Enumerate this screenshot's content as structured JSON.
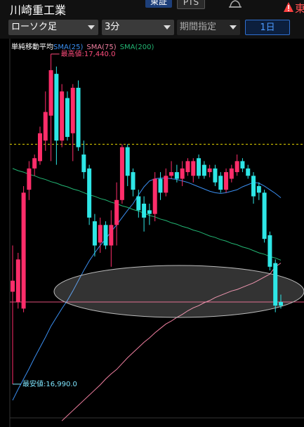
{
  "header": {
    "company": "川崎重工業",
    "market": "東証",
    "pts": "PTS",
    "alert_text": "東"
  },
  "toolbar": {
    "chart_kind": "ローソク足",
    "interval": "3分",
    "period": "期間指定",
    "range": "1日"
  },
  "chart_data": {
    "type": "candlestick",
    "legend_title": "単純移動平均",
    "up_color": "#ff2d6a",
    "down_color": "#2ee6e6",
    "open": [
      17116,
      17102,
      17093,
      17255,
      17284,
      17294,
      17322,
      17356,
      17413,
      17322,
      17380,
      17332,
      17394,
      17303,
      17284,
      17212,
      17183,
      17207,
      17179,
      17207,
      17241,
      17313,
      17279,
      17246,
      17236,
      17227,
      17222,
      17270,
      17251,
      17274,
      17279,
      17270,
      17279,
      17274,
      17298,
      17289,
      17279,
      17284,
      17274,
      17255,
      17270,
      17279,
      17294,
      17284,
      17274,
      17260,
      17251,
      17193,
      17155,
      17102
    ],
    "high": [
      17179,
      17169,
      17260,
      17294,
      17303,
      17341,
      17389,
      17440,
      17423,
      17399,
      17389,
      17399,
      17404,
      17322,
      17289,
      17222,
      17217,
      17212,
      17227,
      17265,
      17317,
      17317,
      17284,
      17255,
      17246,
      17236,
      17279,
      17279,
      17284,
      17294,
      17289,
      17294,
      17298,
      17298,
      17303,
      17294,
      17289,
      17289,
      17279,
      17284,
      17289,
      17303,
      17298,
      17289,
      17279,
      17265,
      17255,
      17198,
      17160,
      17112
    ],
    "low": [
      16990,
      17093,
      17088,
      17241,
      17274,
      17289,
      17308,
      17294,
      17289,
      17313,
      17322,
      17294,
      17308,
      17270,
      17207,
      17164,
      17169,
      17174,
      17150,
      17179,
      17236,
      17260,
      17246,
      17217,
      17198,
      17207,
      17212,
      17241,
      17246,
      17270,
      17265,
      17260,
      17274,
      17265,
      17270,
      17270,
      17272,
      17260,
      17251,
      17251,
      17265,
      17274,
      17279,
      17270,
      17236,
      17241,
      17183,
      17145,
      17088,
      17093
    ],
    "close": [
      17131,
      17160,
      17251,
      17284,
      17298,
      17332,
      17361,
      17418,
      17322,
      17389,
      17327,
      17394,
      17313,
      17279,
      17217,
      17179,
      17207,
      17179,
      17207,
      17241,
      17313,
      17274,
      17255,
      17227,
      17217,
      17222,
      17270,
      17251,
      17274,
      17279,
      17270,
      17284,
      17294,
      17294,
      17274,
      17274,
      17284,
      17265,
      17255,
      17279,
      17284,
      17294,
      17284,
      17274,
      17246,
      17251,
      17188,
      17150,
      17097,
      17097
    ],
    "series": [
      {
        "name": "SMA(25)",
        "color": "#3a8ef0",
        "values": [
          16968,
          16983,
          16997,
          17011,
          17026,
          17040,
          17054,
          17069,
          17081,
          17093,
          17104,
          17117,
          17131,
          17145,
          17158,
          17169,
          17179,
          17188,
          17198,
          17207,
          17217,
          17227,
          17236,
          17248,
          17259,
          17267,
          17270,
          17271,
          17271,
          17270,
          17269,
          17267,
          17265,
          17262,
          17259,
          17256,
          17253,
          17251,
          17250,
          17251,
          17253,
          17255,
          17259,
          17262,
          17265,
          17264,
          17260,
          17255,
          17250,
          17244
        ]
      },
      {
        "name": "SMA(75)",
        "color": "#f07fa0",
        "values": [
          null,
          null,
          null,
          null,
          null,
          null,
          null,
          null,
          null,
          16940,
          16947,
          16954,
          16961,
          16968,
          16975,
          16982,
          16989,
          16997,
          17004,
          17010,
          17018,
          17026,
          17033,
          17040,
          17047,
          17053,
          17060,
          17066,
          17072,
          17076,
          17081,
          17085,
          17090,
          17094,
          17097,
          17101,
          17104,
          17108,
          17111,
          17114,
          17117,
          17119,
          17122,
          17125,
          17128,
          17132,
          17136,
          17140,
          17150,
          17155
        ]
      },
      {
        "name": "SMA(200)",
        "color": "#22b573",
        "values": [
          17284,
          17281,
          17279,
          17276,
          17274,
          17271,
          17269,
          17266,
          17264,
          17261,
          17259,
          17256,
          17254,
          17251,
          17248,
          17246,
          17243,
          17241,
          17238,
          17236,
          17233,
          17231,
          17228,
          17226,
          17223,
          17220,
          17218,
          17215,
          17213,
          17210,
          17208,
          17205,
          17203,
          17200,
          17198,
          17195,
          17192,
          17190,
          17187,
          17185,
          17182,
          17180,
          17177,
          17175,
          17172,
          17169,
          17167,
          17164,
          17162,
          17159
        ]
      }
    ],
    "ylim": [
      16944,
      17461
    ],
    "annotations": [
      {
        "label": "最高値:17,440.0",
        "value": 17440,
        "color": "#ff4d7d"
      },
      {
        "label": "最安値:16,990.0",
        "value": 16990,
        "color": "#7fe6ff"
      }
    ],
    "reference_lines": [
      {
        "value": 17317,
        "color": "#e8d800",
        "dashed": true
      },
      {
        "value": 17102,
        "color": "#e0507a",
        "dashed": false
      }
    ]
  }
}
